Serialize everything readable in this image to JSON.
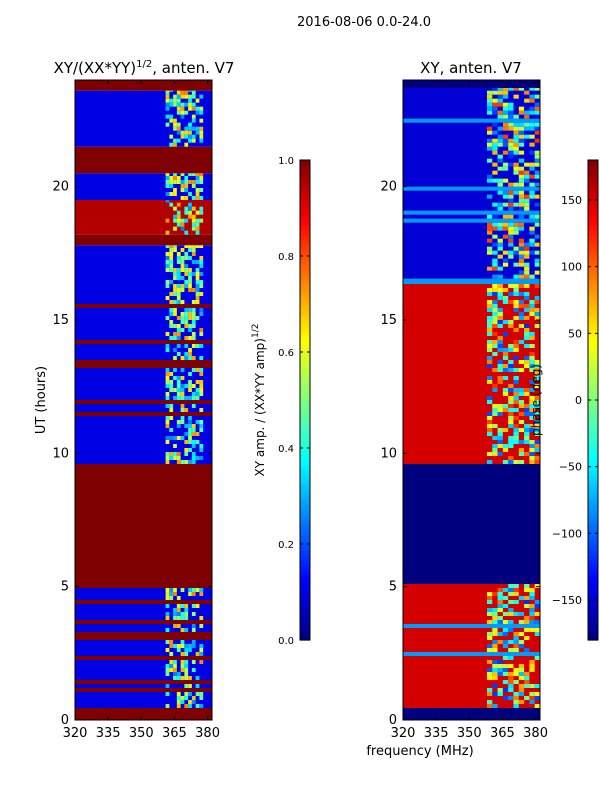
{
  "header": {
    "date_text": "2016-08-06 0.0-24.0"
  },
  "colors": {
    "jet": [
      "#00007f",
      "#0000ff",
      "#007fff",
      "#00ffff",
      "#7fff7f",
      "#ffff00",
      "#ff7f00",
      "#ff0000",
      "#7f0000"
    ],
    "frame": "#000000",
    "background": "#ffffff"
  },
  "chart_data": [
    {
      "type": "heatmap",
      "id": "amp",
      "title_main": "XY/(XX*YY)",
      "title_sup": "1/2",
      "title_tail": ", anten. V7",
      "ylabel": "UT (hours)",
      "xlabel": "",
      "xlim": [
        320,
        382
      ],
      "ylim": [
        0,
        24
      ],
      "xticks": [
        320,
        335,
        350,
        365,
        380
      ],
      "xtick_labels": [
        "320",
        "335",
        "350",
        "365",
        "380"
      ],
      "yticks": [
        0,
        5,
        10,
        15,
        20
      ],
      "ytick_labels": [
        "0",
        "5",
        "10",
        "15",
        "20"
      ],
      "colorbar": {
        "label": "XY amp. / (XX*YY amp)",
        "label_sup": "1/2",
        "range": [
          0.0,
          1.0
        ],
        "ticks": [
          0.0,
          0.2,
          0.4,
          0.6,
          0.8,
          1.0
        ],
        "tick_labels": [
          "0.0",
          "0.2",
          "0.4",
          "0.6",
          "0.8",
          "1.0"
        ]
      },
      "time_blocks": [
        {
          "t0": 0.0,
          "t1": 0.45,
          "value": 1.0,
          "kind": "flagged"
        },
        {
          "t0": 0.45,
          "t1": 5.1,
          "value": 0.1,
          "kind": "data"
        },
        {
          "t0": 5.1,
          "t1": 9.6,
          "value": 1.0,
          "kind": "flagged"
        },
        {
          "t0": 9.6,
          "t1": 17.8,
          "value": 0.1,
          "kind": "data"
        },
        {
          "t0": 17.8,
          "t1": 18.2,
          "value": 1.0,
          "kind": "flagged"
        },
        {
          "t0": 18.2,
          "t1": 19.5,
          "value": 0.95,
          "kind": "data"
        },
        {
          "t0": 19.5,
          "t1": 20.5,
          "value": 0.1,
          "kind": "data"
        },
        {
          "t0": 20.5,
          "t1": 21.5,
          "value": 1.0,
          "kind": "flagged"
        },
        {
          "t0": 21.5,
          "t1": 23.6,
          "value": 0.1,
          "kind": "data"
        },
        {
          "t0": 23.6,
          "t1": 24.0,
          "value": 1.0,
          "kind": "flagged"
        }
      ],
      "hot_band": {
        "f0": 361,
        "f1": 378,
        "value_range": [
          0.25,
          0.75
        ]
      },
      "stripe_value": 1.0,
      "stripe_density": 0.12
    },
    {
      "type": "heatmap",
      "id": "phase",
      "title_main": "XY, anten. V7",
      "ylabel": "",
      "xlabel": "frequency (MHz)",
      "xlim": [
        320,
        382
      ],
      "ylim": [
        0,
        24
      ],
      "xticks": [
        320,
        335,
        350,
        365,
        380
      ],
      "xtick_labels": [
        "320",
        "335",
        "350",
        "365",
        "380"
      ],
      "yticks": [
        0,
        5,
        10,
        15,
        20
      ],
      "ytick_labels": [
        "0",
        "5",
        "10",
        "15",
        "20"
      ],
      "colorbar": {
        "label": "phase (deg)",
        "range": [
          -180,
          180
        ],
        "ticks": [
          -150,
          -100,
          -50,
          0,
          50,
          100,
          150
        ],
        "tick_labels": [
          "−150",
          "−100",
          "−50",
          "0",
          "50",
          "100",
          "150"
        ]
      },
      "time_blocks": [
        {
          "t0": 0.0,
          "t1": 0.45,
          "value": -180,
          "kind": "flagged"
        },
        {
          "t0": 0.45,
          "t1": 5.1,
          "value": 150,
          "kind": "data"
        },
        {
          "t0": 5.1,
          "t1": 9.6,
          "value": -180,
          "kind": "flagged"
        },
        {
          "t0": 9.6,
          "t1": 16.4,
          "value": 150,
          "kind": "data"
        },
        {
          "t0": 16.4,
          "t1": 23.7,
          "value": -150,
          "kind": "data"
        },
        {
          "t0": 23.7,
          "t1": 24.0,
          "value": -180,
          "kind": "flagged"
        }
      ],
      "hot_band": {
        "f0": 358,
        "f1": 382,
        "value_range": [
          -120,
          120
        ]
      },
      "stripe_value": -80,
      "stripe_density": 0.1
    }
  ]
}
